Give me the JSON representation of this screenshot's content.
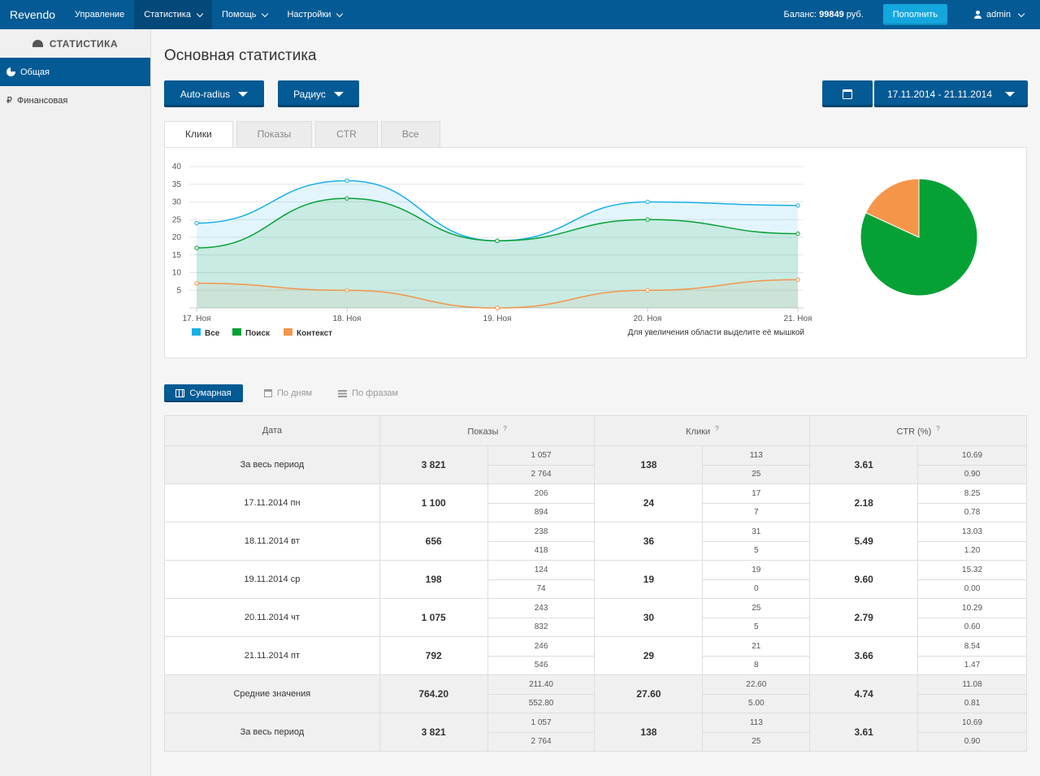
{
  "navbar": {
    "brand": "Revendo",
    "items": [
      {
        "label": "Управление",
        "has_caret": false,
        "active": false
      },
      {
        "label": "Статистика",
        "has_caret": true,
        "active": true
      },
      {
        "label": "Помощь",
        "has_caret": true,
        "active": false
      },
      {
        "label": "Настройки",
        "has_caret": true,
        "active": false
      }
    ],
    "balance_label": "Баланс:",
    "balance_value": "99849",
    "balance_currency": "руб.",
    "topup_label": "Пополнить",
    "user": "admin"
  },
  "sidebar": {
    "title": "СТАТИСТИКА",
    "items": [
      {
        "label": "Общая",
        "active": true,
        "icon": "pie-chart-icon"
      },
      {
        "label": "Финансовая",
        "active": false,
        "icon": "ruble-icon"
      }
    ],
    "ruble_glyph": "₽"
  },
  "main": {
    "title": "Основная статистика",
    "filter1": "Auto-radius",
    "filter2": "Радиус",
    "date_range": "17.11.2014 - 21.11.2014",
    "tabs": [
      "Клики",
      "Показы",
      "CTR",
      "Все"
    ],
    "active_tab": 0,
    "zoom_hint": "Для увеличения области выделите её мышкой",
    "views": [
      "Сумарная",
      "По дням",
      "По фразам"
    ],
    "active_view": 0
  },
  "chart_data": [
    {
      "type": "area",
      "categories": [
        "17. Ноя",
        "18. Ноя",
        "19. Ноя",
        "20. Ноя",
        "21. Ноя"
      ],
      "ylim": [
        0,
        40
      ],
      "yticks": [
        5,
        10,
        15,
        20,
        25,
        30,
        35,
        40
      ],
      "grid": true,
      "legend": "bottom-left",
      "series": [
        {
          "name": "Все",
          "color": "#1aafe6",
          "values": [
            24,
            36,
            19,
            30,
            29
          ]
        },
        {
          "name": "Поиск",
          "color": "#06a135",
          "values": [
            17,
            31,
            19,
            25,
            21
          ]
        },
        {
          "name": "Контекст",
          "color": "#f5954a",
          "values": [
            7,
            5,
            0,
            5,
            8
          ]
        }
      ]
    },
    {
      "type": "pie",
      "slices": [
        {
          "name": "Поиск",
          "color": "#06a135",
          "value": 113
        },
        {
          "name": "Контекст",
          "color": "#f5954a",
          "value": 25
        }
      ]
    }
  ],
  "table": {
    "headers": [
      "Дата",
      "Показы",
      "Клики",
      "CTR (%)"
    ],
    "qmark": "?",
    "rows": [
      {
        "date": "За весь период",
        "shows": "3 821",
        "shows_a": "1 057",
        "shows_b": "2 764",
        "clicks": "138",
        "clicks_a": "113",
        "clicks_b": "25",
        "ctr": "3.61",
        "ctr_a": "10.69",
        "ctr_b": "0.90",
        "gray": true
      },
      {
        "date": "17.11.2014 пн",
        "shows": "1 100",
        "shows_a": "206",
        "shows_b": "894",
        "clicks": "24",
        "clicks_a": "17",
        "clicks_b": "7",
        "ctr": "2.18",
        "ctr_a": "8.25",
        "ctr_b": "0.78",
        "gray": false
      },
      {
        "date": "18.11.2014 вт",
        "shows": "656",
        "shows_a": "238",
        "shows_b": "418",
        "clicks": "36",
        "clicks_a": "31",
        "clicks_b": "5",
        "ctr": "5.49",
        "ctr_a": "13.03",
        "ctr_b": "1.20",
        "gray": false
      },
      {
        "date": "19.11.2014 ср",
        "shows": "198",
        "shows_a": "124",
        "shows_b": "74",
        "clicks": "19",
        "clicks_a": "19",
        "clicks_b": "0",
        "ctr": "9.60",
        "ctr_a": "15.32",
        "ctr_b": "0.00",
        "gray": false
      },
      {
        "date": "20.11.2014 чт",
        "shows": "1 075",
        "shows_a": "243",
        "shows_b": "832",
        "clicks": "30",
        "clicks_a": "25",
        "clicks_b": "5",
        "ctr": "2.79",
        "ctr_a": "10.29",
        "ctr_b": "0.60",
        "gray": false
      },
      {
        "date": "21.11.2014 пт",
        "shows": "792",
        "shows_a": "246",
        "shows_b": "546",
        "clicks": "29",
        "clicks_a": "21",
        "clicks_b": "8",
        "ctr": "3.66",
        "ctr_a": "8.54",
        "ctr_b": "1.47",
        "gray": false
      },
      {
        "date": "Средние значения",
        "shows": "764.20",
        "shows_a": "211.40",
        "shows_b": "552.80",
        "clicks": "27.60",
        "clicks_a": "22.60",
        "clicks_b": "5.00",
        "ctr": "4.74",
        "ctr_a": "11.08",
        "ctr_b": "0.81",
        "gray": true
      },
      {
        "date": "За весь период",
        "shows": "3 821",
        "shows_a": "1 057",
        "shows_b": "2 764",
        "clicks": "138",
        "clicks_a": "113",
        "clicks_b": "25",
        "ctr": "3.61",
        "ctr_a": "10.69",
        "ctr_b": "0.90",
        "gray": true
      }
    ]
  }
}
